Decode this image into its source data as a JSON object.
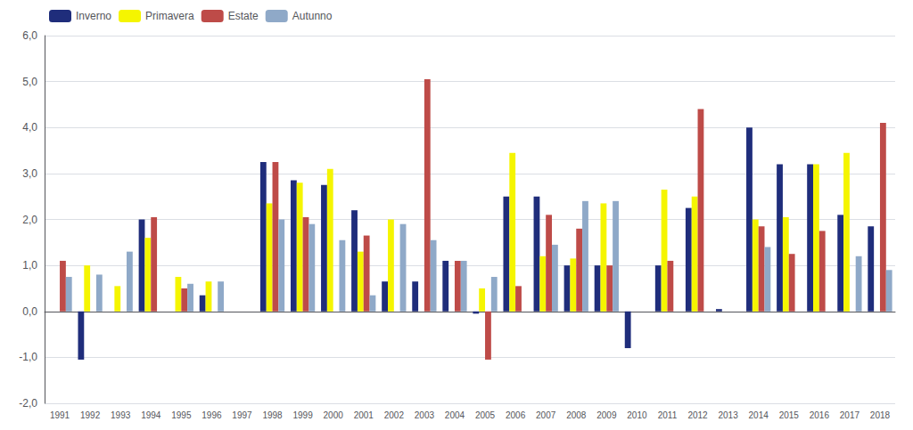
{
  "chart_data": {
    "type": "bar",
    "categories": [
      "1991",
      "1992",
      "1993",
      "1994",
      "1995",
      "1996",
      "1997",
      "1998",
      "1999",
      "2000",
      "2001",
      "2002",
      "2003",
      "2004",
      "2005",
      "2006",
      "2007",
      "2008",
      "2009",
      "2010",
      "2011",
      "2012",
      "2013",
      "2014",
      "2015",
      "2016",
      "2017",
      "2018"
    ],
    "series": [
      {
        "name": "Inverno",
        "color": "#1F2D7B",
        "values": [
          0.0,
          -1.05,
          0.0,
          2.0,
          0.0,
          0.35,
          0.0,
          3.25,
          2.85,
          2.75,
          2.2,
          0.65,
          0.65,
          1.1,
          -0.05,
          2.5,
          2.5,
          1.0,
          1.0,
          -0.8,
          1.0,
          2.25,
          0.05,
          4.0,
          3.2,
          3.2,
          2.1,
          1.85
        ]
      },
      {
        "name": "Primavera",
        "color": "#F5F500",
        "values": [
          0.0,
          1.0,
          0.55,
          1.6,
          0.75,
          0.65,
          0.0,
          2.35,
          2.8,
          3.1,
          1.3,
          2.0,
          0.0,
          0.0,
          0.5,
          3.45,
          1.2,
          1.15,
          2.35,
          0.0,
          2.65,
          2.5,
          0.0,
          2.0,
          2.05,
          3.2,
          3.45,
          0.0
        ]
      },
      {
        "name": "Estate",
        "color": "#BE4B48",
        "values": [
          1.1,
          0.0,
          0.0,
          2.05,
          0.5,
          0.0,
          0.0,
          3.25,
          2.05,
          0.0,
          1.65,
          0.0,
          5.05,
          1.1,
          -1.05,
          0.55,
          2.1,
          1.8,
          1.0,
          0.0,
          1.1,
          4.4,
          0.0,
          1.85,
          1.25,
          1.75,
          0.0,
          4.1
        ]
      },
      {
        "name": "Autunno",
        "color": "#8FA9C8",
        "values": [
          0.75,
          0.8,
          1.3,
          0.0,
          0.6,
          0.65,
          0.0,
          2.0,
          1.9,
          1.55,
          0.35,
          1.9,
          1.55,
          1.1,
          0.75,
          0.0,
          1.45,
          2.4,
          2.4,
          0.0,
          0.0,
          0.0,
          0.0,
          1.4,
          0.0,
          0.0,
          1.2,
          0.9
        ]
      }
    ],
    "ylim": [
      -2.0,
      6.0
    ],
    "yticks": [
      {
        "value": -2.0,
        "label": "-2,0"
      },
      {
        "value": -1.0,
        "label": "-1,0"
      },
      {
        "value": 0.0,
        "label": "0,0"
      },
      {
        "value": 1.0,
        "label": "1,0"
      },
      {
        "value": 2.0,
        "label": "2,0"
      },
      {
        "value": 3.0,
        "label": "3,0"
      },
      {
        "value": 4.0,
        "label": "4,0"
      },
      {
        "value": 5.0,
        "label": "5,0"
      },
      {
        "value": 6.0,
        "label": "6,0"
      }
    ],
    "grid": true,
    "legend": "upper left"
  }
}
